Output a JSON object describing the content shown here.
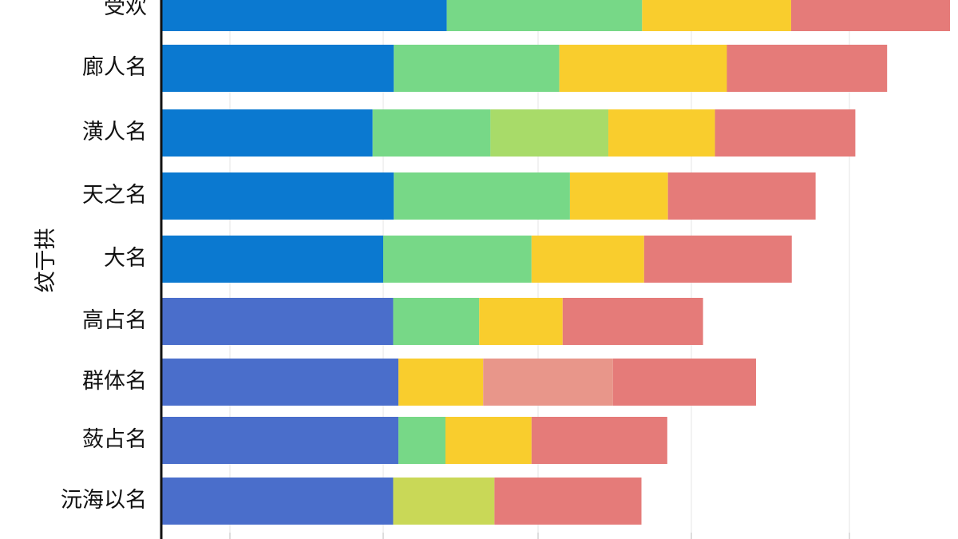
{
  "chart_data": {
    "type": "bar",
    "orientation": "horizontal",
    "stacked": true,
    "ylabel": "纹亍拱",
    "xlabel": "",
    "xlim": [
      0,
      1190
    ],
    "grid": true,
    "legend": "none",
    "categories": [
      "受欢",
      "廊人名",
      "潢人名",
      "天之名",
      "大名",
      "高占名",
      "群体名",
      "蔹占名",
      "沅海以名"
    ],
    "rows": [
      {
        "category": "受欢",
        "segments": [
          {
            "value": 430,
            "color": "#0b79d0"
          },
          {
            "value": 295,
            "color": "#77d887"
          },
          {
            "value": 225,
            "color": "#f9cd2d"
          },
          {
            "value": 240,
            "color": "#e57b79"
          }
        ]
      },
      {
        "category": "廊人名",
        "segments": [
          {
            "value": 350,
            "color": "#0b79d0"
          },
          {
            "value": 250,
            "color": "#77d887"
          },
          {
            "value": 253,
            "color": "#f9cd2d"
          },
          {
            "value": 242,
            "color": "#e57b79"
          }
        ]
      },
      {
        "category": "潢人名",
        "segments": [
          {
            "value": 318,
            "color": "#0b79d0"
          },
          {
            "value": 178,
            "color": "#77d887"
          },
          {
            "value": 178,
            "color": "#a8db69"
          },
          {
            "value": 161,
            "color": "#f9cd2d"
          },
          {
            "value": 212,
            "color": "#e57b79"
          }
        ]
      },
      {
        "category": "天之名",
        "segments": [
          {
            "value": 350,
            "color": "#0b79d0"
          },
          {
            "value": 266,
            "color": "#77d887"
          },
          {
            "value": 148,
            "color": "#f9cd2d"
          },
          {
            "value": 223,
            "color": "#e57b79"
          }
        ]
      },
      {
        "category": "大名",
        "segments": [
          {
            "value": 334,
            "color": "#0b79d0"
          },
          {
            "value": 224,
            "color": "#77d887"
          },
          {
            "value": 170,
            "color": "#f9cd2d"
          },
          {
            "value": 223,
            "color": "#e57b79"
          }
        ]
      },
      {
        "category": "高占名",
        "segments": [
          {
            "value": 349,
            "color": "#4a6ecb"
          },
          {
            "value": 130,
            "color": "#77d887"
          },
          {
            "value": 126,
            "color": "#f9cd2d"
          },
          {
            "value": 212,
            "color": "#e57b79"
          }
        ]
      },
      {
        "category": "群体名",
        "segments": [
          {
            "value": 357,
            "color": "#4a6ecb"
          },
          {
            "value": 128,
            "color": "#f9cd2d"
          },
          {
            "value": 196,
            "color": "#e8968a"
          },
          {
            "value": 216,
            "color": "#e57b79"
          }
        ]
      },
      {
        "category": "蔹占名",
        "segments": [
          {
            "value": 357,
            "color": "#4a6ecb"
          },
          {
            "value": 71,
            "color": "#77d887"
          },
          {
            "value": 130,
            "color": "#f9cd2d"
          },
          {
            "value": 205,
            "color": "#e57b79"
          }
        ]
      },
      {
        "category": "沅海以名",
        "segments": [
          {
            "value": 349,
            "color": "#4a6ecb"
          },
          {
            "value": 153,
            "color": "#c9d857"
          },
          {
            "value": 222,
            "color": "#e57b79"
          }
        ]
      }
    ]
  }
}
